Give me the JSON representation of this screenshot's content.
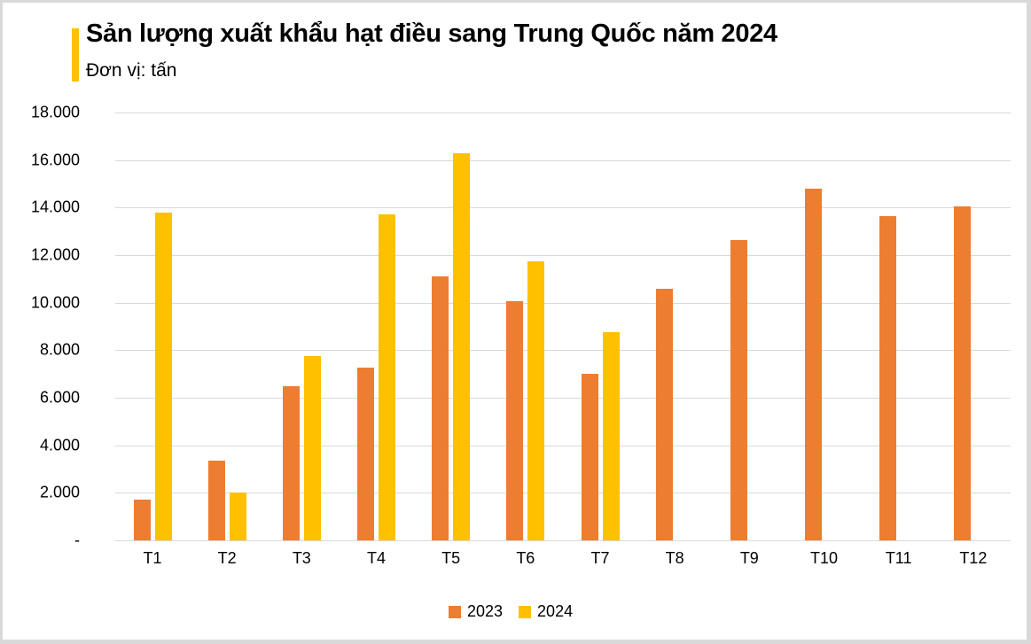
{
  "header": {
    "title": "Sản lượng xuất khẩu hạt điều sang Trung Quốc năm 2024",
    "subtitle": "Đơn vị: tấn",
    "accent_color": "#ffc000"
  },
  "chart_data": {
    "type": "bar",
    "title": "Sản lượng xuất khẩu hạt điều sang Trung Quốc năm 2024",
    "subtitle": "Đơn vị: tấn",
    "xlabel": "",
    "ylabel": "",
    "categories": [
      "T1",
      "T2",
      "T3",
      "T4",
      "T5",
      "T6",
      "T7",
      "T8",
      "T9",
      "T10",
      "T11",
      "T12"
    ],
    "series": [
      {
        "name": "2023",
        "color": "#ed7d31",
        "values": [
          1700,
          3350,
          6500,
          7250,
          11100,
          10050,
          7000,
          10600,
          12650,
          14800,
          13650,
          14050
        ]
      },
      {
        "name": "2024",
        "color": "#ffc000",
        "values": [
          13800,
          2000,
          7750,
          13700,
          16300,
          11750,
          8750,
          null,
          null,
          null,
          null,
          null
        ]
      }
    ],
    "ylim": [
      0,
      18000
    ],
    "yticks": [
      0,
      2000,
      4000,
      6000,
      8000,
      10000,
      12000,
      14000,
      16000,
      18000
    ],
    "ytick_labels": [
      "-",
      "2.000",
      "4.000",
      "6.000",
      "8.000",
      "10.000",
      "12.000",
      "14.000",
      "16.000",
      "18.000"
    ],
    "grid": true,
    "legend_position": "bottom"
  },
  "legend": {
    "items": [
      {
        "label": "2023",
        "color": "#ed7d31"
      },
      {
        "label": "2024",
        "color": "#ffc000"
      }
    ]
  }
}
